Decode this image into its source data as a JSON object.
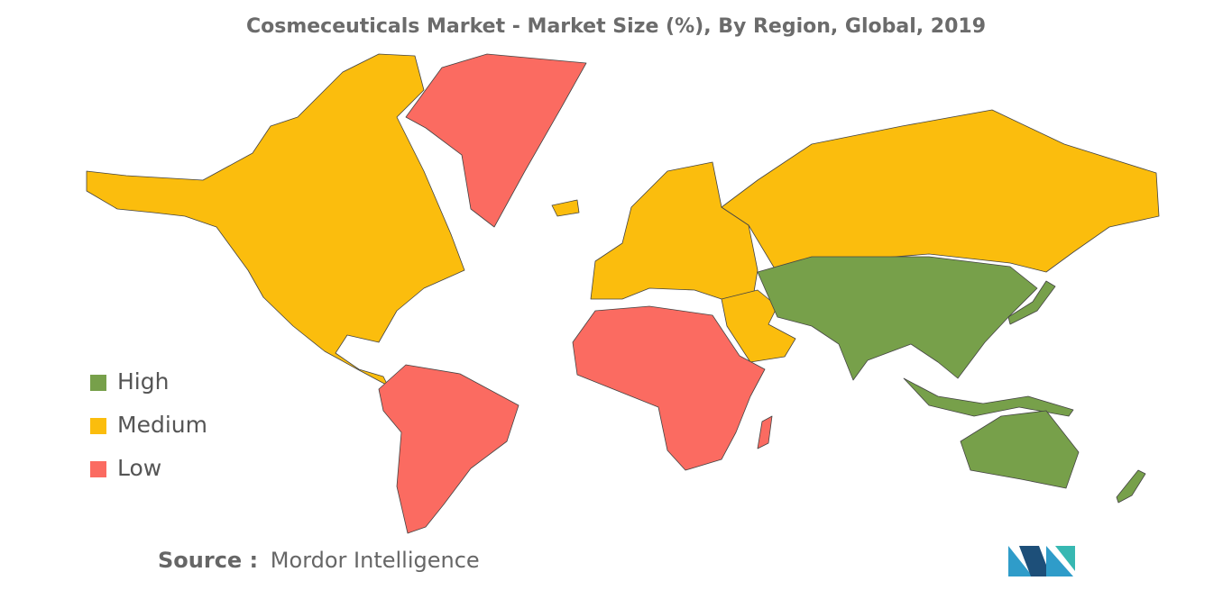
{
  "title": "Cosmeceuticals Market - Market Size (%), By Region, Global, 2019",
  "legend": [
    {
      "label": "High",
      "color": "#77a04a"
    },
    {
      "label": "Medium",
      "color": "#fbbd0d"
    },
    {
      "label": "Low",
      "color": "#fb6b61"
    }
  ],
  "source": {
    "label": "Source :",
    "text": "Mordor Intelligence"
  }
}
